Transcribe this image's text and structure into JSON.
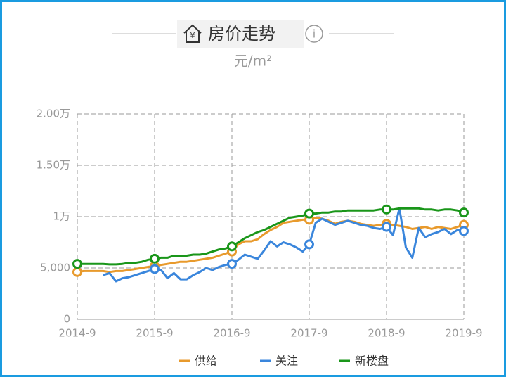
{
  "chart_data": {
    "type": "line",
    "title": "房价走势",
    "subtitle": "元/m²",
    "categories": [
      "2014-9",
      null,
      null,
      null,
      null,
      null,
      null,
      null,
      null,
      null,
      null,
      null,
      "2015-9",
      null,
      null,
      null,
      null,
      null,
      null,
      null,
      null,
      null,
      null,
      null,
      "2016-9",
      null,
      null,
      null,
      null,
      null,
      null,
      null,
      null,
      null,
      null,
      null,
      "2017-9",
      null,
      null,
      null,
      null,
      null,
      null,
      null,
      null,
      null,
      null,
      null,
      "2018-9",
      null,
      null,
      null,
      null,
      null,
      null,
      null,
      null,
      null,
      null,
      null,
      "2019-9"
    ],
    "series": [
      {
        "name": "供给",
        "color": "#e89a2c",
        "values": [
          4600,
          4700,
          4700,
          4700,
          4700,
          4600,
          4700,
          4700,
          4800,
          4900,
          5000,
          5100,
          5200,
          5300,
          5400,
          5500,
          5600,
          5600,
          5700,
          5800,
          5900,
          6000,
          6200,
          6400,
          6600,
          7300,
          7600,
          7600,
          7800,
          8300,
          8700,
          9000,
          9400,
          9500,
          9600,
          9700,
          9700,
          9900,
          9800,
          9600,
          9300,
          9500,
          9600,
          9500,
          9300,
          9200,
          9100,
          9200,
          9300,
          9200,
          9100,
          9000,
          8800,
          8900,
          9000,
          8800,
          9000,
          8900,
          8800,
          9000,
          9200
        ]
      },
      {
        "name": "关注",
        "color": "#3a86dc",
        "values": [
          null,
          null,
          null,
          null,
          4300,
          4500,
          3700,
          4000,
          4100,
          4300,
          4500,
          4700,
          4900,
          4800,
          4000,
          4500,
          3900,
          3900,
          4300,
          4600,
          5000,
          4800,
          5100,
          5300,
          5400,
          5800,
          6300,
          6100,
          5900,
          6700,
          7600,
          7100,
          7500,
          7300,
          7000,
          6600,
          7300,
          9400,
          9800,
          9500,
          9200,
          9400,
          9600,
          9400,
          9200,
          9100,
          8900,
          8800,
          9000,
          8200,
          10800,
          7000,
          6000,
          8900,
          8000,
          8300,
          8500,
          8800,
          8300,
          8700,
          8600
        ]
      },
      {
        "name": "新楼盘",
        "color": "#1a961a",
        "values": [
          5400,
          5400,
          5400,
          5400,
          5400,
          5350,
          5350,
          5400,
          5500,
          5500,
          5600,
          5800,
          5900,
          6000,
          6000,
          6200,
          6200,
          6200,
          6300,
          6300,
          6400,
          6600,
          6800,
          6900,
          7100,
          7500,
          7900,
          8200,
          8500,
          8700,
          9000,
          9300,
          9600,
          9900,
          10000,
          10100,
          10300,
          10300,
          10400,
          10400,
          10500,
          10500,
          10600,
          10600,
          10600,
          10600,
          10600,
          10700,
          10700,
          10700,
          10800,
          10800,
          10800,
          10800,
          10700,
          10700,
          10600,
          10700,
          10700,
          10600,
          10400
        ]
      }
    ],
    "ylim": [
      0,
      20000
    ],
    "yticks": [
      0,
      {
        "value": 5000,
        "label": "5,000"
      },
      {
        "value": 10000,
        "label": "1万"
      },
      {
        "value": 15000,
        "label": "1.50万"
      },
      {
        "value": 20000,
        "label": "2.00万"
      }
    ],
    "grid": true
  }
}
